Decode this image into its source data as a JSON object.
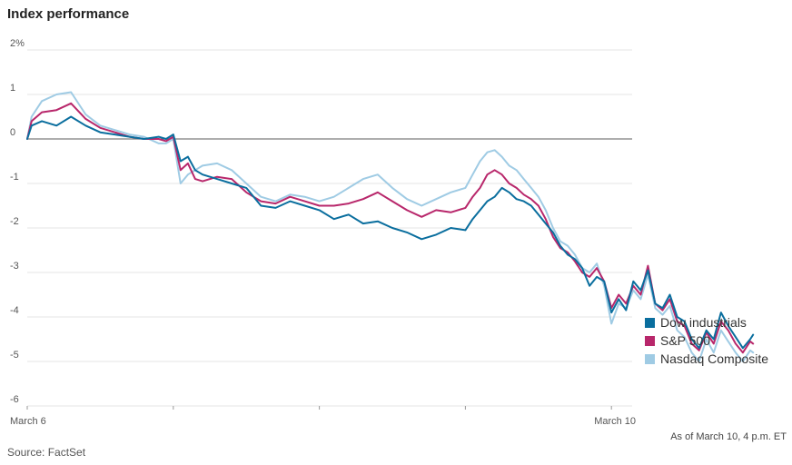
{
  "title": "Index performance",
  "as_of": "As of March 10, 4 p.m. ET",
  "source": "Source: FactSet",
  "colors": {
    "dow": "#0a6e9e",
    "sp": "#b8276b",
    "nasdaq": "#9fcbe4",
    "grid": "#e4e4e4",
    "zero_line": "#7d7d7d"
  },
  "legend": [
    {
      "label": "Dow industrials",
      "color": "#0a6e9e"
    },
    {
      "label": "S&P 500",
      "color": "#b8276b"
    },
    {
      "label": "Nasdaq Composite",
      "color": "#9fcbe4"
    }
  ],
  "chart_data": {
    "type": "line",
    "title": "Index performance",
    "xlabel": "",
    "ylabel": "",
    "ylim": [
      -6,
      2
    ],
    "xlim": [
      0,
      5
    ],
    "y_ticks": [
      {
        "value": 2,
        "label": "2%"
      },
      {
        "value": 1,
        "label": "1"
      },
      {
        "value": 0,
        "label": "0"
      },
      {
        "value": -1,
        "label": "-1"
      },
      {
        "value": -2,
        "label": "-2"
      },
      {
        "value": -3,
        "label": "-3"
      },
      {
        "value": -4,
        "label": "-4"
      },
      {
        "value": -5,
        "label": "-5"
      },
      {
        "value": -6,
        "label": "-6"
      }
    ],
    "x_ticks": [
      {
        "value": 0,
        "label": "March 6"
      },
      {
        "value": 1,
        "label": ""
      },
      {
        "value": 2,
        "label": ""
      },
      {
        "value": 3,
        "label": ""
      },
      {
        "value": 4,
        "label": "March 10"
      }
    ],
    "grid": true,
    "legend_position": "right",
    "series": [
      {
        "name": "Dow industrials",
        "color": "#0a6e9e",
        "points": [
          [
            0,
            0
          ],
          [
            0.03,
            0.3
          ],
          [
            0.1,
            0.4
          ],
          [
            0.2,
            0.3
          ],
          [
            0.3,
            0.5
          ],
          [
            0.4,
            0.3
          ],
          [
            0.5,
            0.15
          ],
          [
            0.6,
            0.1
          ],
          [
            0.7,
            0.05
          ],
          [
            0.8,
            0.0
          ],
          [
            0.9,
            0.05
          ],
          [
            0.95,
            0.0
          ],
          [
            1.0,
            0.1
          ],
          [
            1.05,
            -0.5
          ],
          [
            1.1,
            -0.4
          ],
          [
            1.15,
            -0.7
          ],
          [
            1.2,
            -0.8
          ],
          [
            1.3,
            -0.9
          ],
          [
            1.4,
            -1.0
          ],
          [
            1.5,
            -1.1
          ],
          [
            1.6,
            -1.5
          ],
          [
            1.7,
            -1.55
          ],
          [
            1.8,
            -1.4
          ],
          [
            1.9,
            -1.5
          ],
          [
            2.0,
            -1.6
          ],
          [
            2.1,
            -1.8
          ],
          [
            2.2,
            -1.7
          ],
          [
            2.3,
            -1.9
          ],
          [
            2.4,
            -1.85
          ],
          [
            2.5,
            -2.0
          ],
          [
            2.6,
            -2.1
          ],
          [
            2.7,
            -2.25
          ],
          [
            2.8,
            -2.15
          ],
          [
            2.9,
            -2.0
          ],
          [
            3.0,
            -2.05
          ],
          [
            3.05,
            -1.8
          ],
          [
            3.1,
            -1.6
          ],
          [
            3.15,
            -1.4
          ],
          [
            3.2,
            -1.3
          ],
          [
            3.25,
            -1.1
          ],
          [
            3.3,
            -1.2
          ],
          [
            3.35,
            -1.35
          ],
          [
            3.4,
            -1.4
          ],
          [
            3.45,
            -1.5
          ],
          [
            3.5,
            -1.7
          ],
          [
            3.55,
            -1.9
          ],
          [
            3.6,
            -2.1
          ],
          [
            3.65,
            -2.4
          ],
          [
            3.7,
            -2.6
          ],
          [
            3.75,
            -2.7
          ],
          [
            3.8,
            -2.9
          ],
          [
            3.85,
            -3.3
          ],
          [
            3.9,
            -3.1
          ],
          [
            3.95,
            -3.2
          ],
          [
            4.0,
            -3.9
          ],
          [
            4.05,
            -3.6
          ],
          [
            4.1,
            -3.85
          ],
          [
            4.15,
            -3.2
          ],
          [
            4.2,
            -3.4
          ],
          [
            4.25,
            -2.95
          ],
          [
            4.3,
            -3.7
          ],
          [
            4.35,
            -3.8
          ],
          [
            4.4,
            -3.5
          ],
          [
            4.45,
            -4.0
          ],
          [
            4.5,
            -4.1
          ],
          [
            4.55,
            -4.5
          ],
          [
            4.6,
            -4.7
          ],
          [
            4.65,
            -4.3
          ],
          [
            4.7,
            -4.5
          ],
          [
            4.75,
            -3.9
          ],
          [
            4.8,
            -4.2
          ],
          [
            4.85,
            -4.45
          ],
          [
            4.9,
            -4.7
          ],
          [
            4.95,
            -4.5
          ],
          [
            4.97,
            -4.4
          ]
        ]
      },
      {
        "name": "S&P 500",
        "color": "#b8276b",
        "points": [
          [
            0,
            0
          ],
          [
            0.03,
            0.4
          ],
          [
            0.1,
            0.6
          ],
          [
            0.2,
            0.65
          ],
          [
            0.3,
            0.8
          ],
          [
            0.4,
            0.45
          ],
          [
            0.5,
            0.25
          ],
          [
            0.6,
            0.15
          ],
          [
            0.7,
            0.05
          ],
          [
            0.8,
            0.0
          ],
          [
            0.9,
            0.0
          ],
          [
            0.95,
            -0.05
          ],
          [
            1.0,
            0.05
          ],
          [
            1.05,
            -0.7
          ],
          [
            1.1,
            -0.55
          ],
          [
            1.15,
            -0.9
          ],
          [
            1.2,
            -0.95
          ],
          [
            1.3,
            -0.85
          ],
          [
            1.4,
            -0.9
          ],
          [
            1.5,
            -1.2
          ],
          [
            1.6,
            -1.4
          ],
          [
            1.7,
            -1.45
          ],
          [
            1.8,
            -1.3
          ],
          [
            1.9,
            -1.4
          ],
          [
            2.0,
            -1.5
          ],
          [
            2.1,
            -1.5
          ],
          [
            2.2,
            -1.45
          ],
          [
            2.3,
            -1.35
          ],
          [
            2.4,
            -1.2
          ],
          [
            2.5,
            -1.4
          ],
          [
            2.6,
            -1.6
          ],
          [
            2.7,
            -1.75
          ],
          [
            2.8,
            -1.6
          ],
          [
            2.9,
            -1.65
          ],
          [
            3.0,
            -1.55
          ],
          [
            3.05,
            -1.3
          ],
          [
            3.1,
            -1.1
          ],
          [
            3.15,
            -0.8
          ],
          [
            3.2,
            -0.7
          ],
          [
            3.25,
            -0.8
          ],
          [
            3.3,
            -1.0
          ],
          [
            3.35,
            -1.1
          ],
          [
            3.4,
            -1.25
          ],
          [
            3.45,
            -1.35
          ],
          [
            3.5,
            -1.5
          ],
          [
            3.55,
            -1.8
          ],
          [
            3.6,
            -2.2
          ],
          [
            3.65,
            -2.45
          ],
          [
            3.7,
            -2.55
          ],
          [
            3.75,
            -2.75
          ],
          [
            3.8,
            -3.0
          ],
          [
            3.85,
            -3.1
          ],
          [
            3.9,
            -2.9
          ],
          [
            3.95,
            -3.2
          ],
          [
            4.0,
            -3.8
          ],
          [
            4.05,
            -3.5
          ],
          [
            4.1,
            -3.7
          ],
          [
            4.15,
            -3.3
          ],
          [
            4.2,
            -3.5
          ],
          [
            4.25,
            -2.85
          ],
          [
            4.3,
            -3.7
          ],
          [
            4.35,
            -3.85
          ],
          [
            4.4,
            -3.6
          ],
          [
            4.45,
            -4.1
          ],
          [
            4.5,
            -4.2
          ],
          [
            4.55,
            -4.6
          ],
          [
            4.6,
            -4.75
          ],
          [
            4.65,
            -4.35
          ],
          [
            4.7,
            -4.6
          ],
          [
            4.75,
            -4.1
          ],
          [
            4.8,
            -4.3
          ],
          [
            4.85,
            -4.6
          ],
          [
            4.9,
            -4.8
          ],
          [
            4.95,
            -4.55
          ],
          [
            4.97,
            -4.6
          ]
        ]
      },
      {
        "name": "Nasdaq Composite",
        "color": "#9fcbe4",
        "points": [
          [
            0,
            0
          ],
          [
            0.03,
            0.5
          ],
          [
            0.1,
            0.85
          ],
          [
            0.2,
            1.0
          ],
          [
            0.3,
            1.05
          ],
          [
            0.4,
            0.55
          ],
          [
            0.5,
            0.3
          ],
          [
            0.6,
            0.2
          ],
          [
            0.7,
            0.1
          ],
          [
            0.8,
            0.05
          ],
          [
            0.9,
            -0.1
          ],
          [
            0.95,
            -0.1
          ],
          [
            1.0,
            0.0
          ],
          [
            1.05,
            -1.0
          ],
          [
            1.1,
            -0.8
          ],
          [
            1.15,
            -0.7
          ],
          [
            1.2,
            -0.6
          ],
          [
            1.3,
            -0.55
          ],
          [
            1.4,
            -0.7
          ],
          [
            1.5,
            -1.0
          ],
          [
            1.6,
            -1.3
          ],
          [
            1.7,
            -1.4
          ],
          [
            1.8,
            -1.25
          ],
          [
            1.9,
            -1.3
          ],
          [
            2.0,
            -1.4
          ],
          [
            2.1,
            -1.3
          ],
          [
            2.2,
            -1.1
          ],
          [
            2.3,
            -0.9
          ],
          [
            2.4,
            -0.8
          ],
          [
            2.5,
            -1.1
          ],
          [
            2.6,
            -1.35
          ],
          [
            2.7,
            -1.5
          ],
          [
            2.8,
            -1.35
          ],
          [
            2.9,
            -1.2
          ],
          [
            3.0,
            -1.1
          ],
          [
            3.05,
            -0.8
          ],
          [
            3.1,
            -0.5
          ],
          [
            3.15,
            -0.3
          ],
          [
            3.2,
            -0.25
          ],
          [
            3.25,
            -0.4
          ],
          [
            3.3,
            -0.6
          ],
          [
            3.35,
            -0.7
          ],
          [
            3.4,
            -0.9
          ],
          [
            3.45,
            -1.1
          ],
          [
            3.5,
            -1.3
          ],
          [
            3.55,
            -1.6
          ],
          [
            3.6,
            -2.0
          ],
          [
            3.65,
            -2.3
          ],
          [
            3.7,
            -2.4
          ],
          [
            3.75,
            -2.6
          ],
          [
            3.8,
            -2.9
          ],
          [
            3.85,
            -3.0
          ],
          [
            3.9,
            -2.8
          ],
          [
            3.95,
            -3.3
          ],
          [
            4.0,
            -4.15
          ],
          [
            4.05,
            -3.7
          ],
          [
            4.1,
            -3.8
          ],
          [
            4.15,
            -3.4
          ],
          [
            4.2,
            -3.6
          ],
          [
            4.25,
            -3.05
          ],
          [
            4.3,
            -3.8
          ],
          [
            4.35,
            -3.95
          ],
          [
            4.4,
            -3.75
          ],
          [
            4.45,
            -4.3
          ],
          [
            4.5,
            -4.45
          ],
          [
            4.55,
            -4.8
          ],
          [
            4.6,
            -5.0
          ],
          [
            4.65,
            -4.5
          ],
          [
            4.7,
            -4.8
          ],
          [
            4.75,
            -4.3
          ],
          [
            4.8,
            -4.55
          ],
          [
            4.85,
            -4.8
          ],
          [
            4.9,
            -5.0
          ],
          [
            4.95,
            -4.75
          ],
          [
            4.97,
            -4.8
          ]
        ]
      }
    ]
  }
}
